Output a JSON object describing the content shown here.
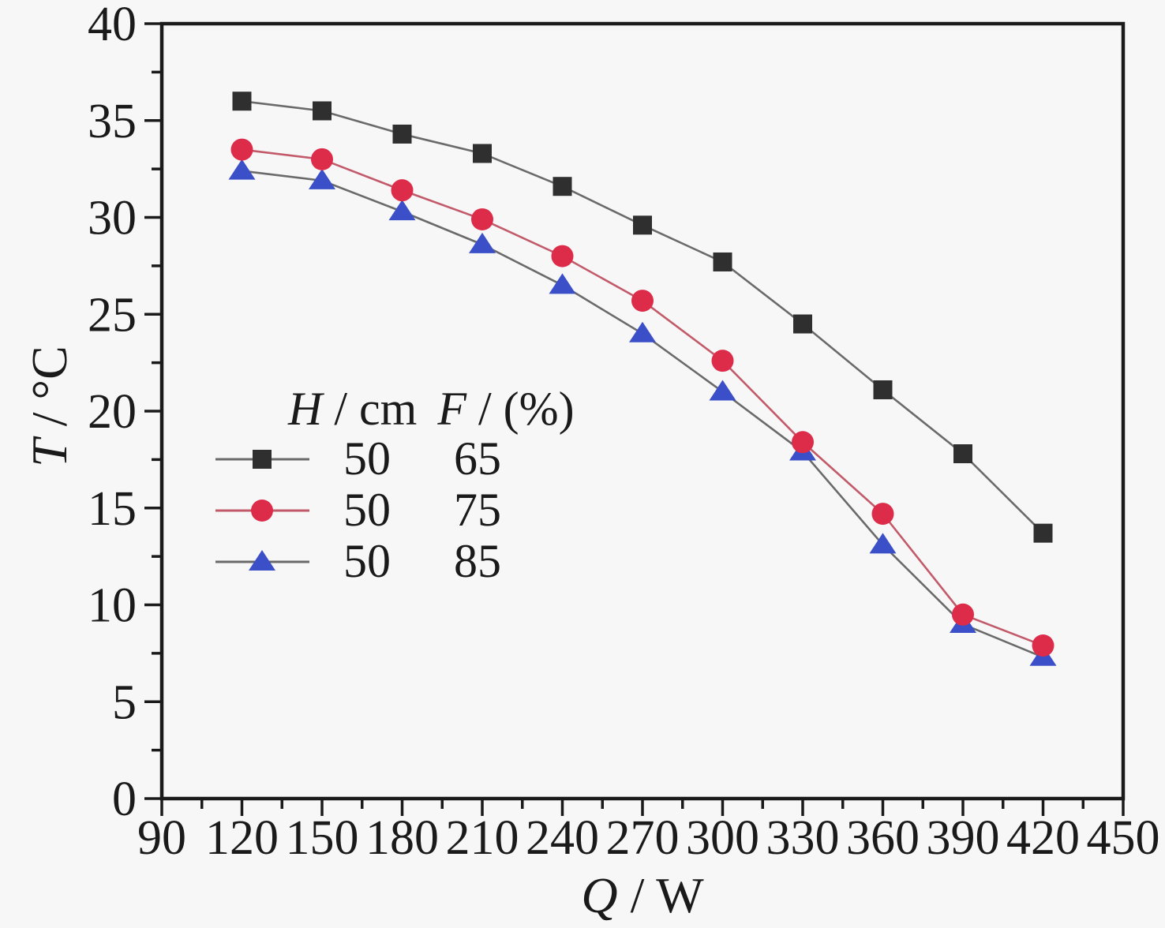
{
  "figure": {
    "background": "#f7f7f7",
    "frame_color": "#1a1a1a",
    "text_color": "#1a1a1a"
  },
  "axes": {
    "x": {
      "symbol": "Q",
      "unit_suffix": " / W"
    },
    "y": {
      "symbol": "T",
      "unit_suffix": " / °C"
    }
  },
  "legend": {
    "headers": [
      {
        "symbol": "H",
        "rest": " / cm"
      },
      {
        "symbol": "F",
        "rest": " / (%)"
      }
    ],
    "rows": [
      {
        "h": "50",
        "f": "65"
      },
      {
        "h": "50",
        "f": "75"
      },
      {
        "h": "50",
        "f": "85"
      }
    ]
  },
  "chart_data": {
    "type": "line",
    "title": "",
    "xlabel": "Q / W",
    "ylabel": "T / °C",
    "xlim": [
      90,
      450
    ],
    "ylim": [
      0,
      40
    ],
    "x_ticks": [
      90,
      120,
      150,
      180,
      210,
      240,
      270,
      300,
      330,
      360,
      390,
      420,
      450
    ],
    "y_ticks": [
      0,
      5,
      10,
      15,
      20,
      25,
      30,
      35,
      40
    ],
    "x_minor_step": 15,
    "y_minor_step": 2.5,
    "grid": false,
    "legend_position": "inside-left-middle",
    "x": [
      120,
      150,
      180,
      210,
      240,
      270,
      300,
      330,
      360,
      390,
      420
    ],
    "series": [
      {
        "name": "H=50 F=65",
        "marker": "square",
        "marker_color": "#2f2f2f",
        "line_color": "#6a6a6a",
        "values": [
          36.0,
          35.5,
          34.3,
          33.3,
          31.6,
          29.6,
          27.7,
          24.5,
          21.1,
          17.8,
          13.7
        ]
      },
      {
        "name": "H=50 F=75",
        "marker": "circle",
        "marker_color": "#dd2c4a",
        "line_color": "#c25a6a",
        "values": [
          33.5,
          33.0,
          31.4,
          29.9,
          28.0,
          25.7,
          22.6,
          18.4,
          14.7,
          9.5,
          7.9
        ]
      },
      {
        "name": "H=50 F=85",
        "marker": "triangle",
        "marker_color": "#3b4fc8",
        "line_color": "#6a6a6a",
        "values": [
          32.4,
          31.9,
          30.3,
          28.6,
          26.5,
          24.0,
          21.0,
          17.9,
          13.1,
          9.0,
          7.3
        ]
      }
    ]
  }
}
